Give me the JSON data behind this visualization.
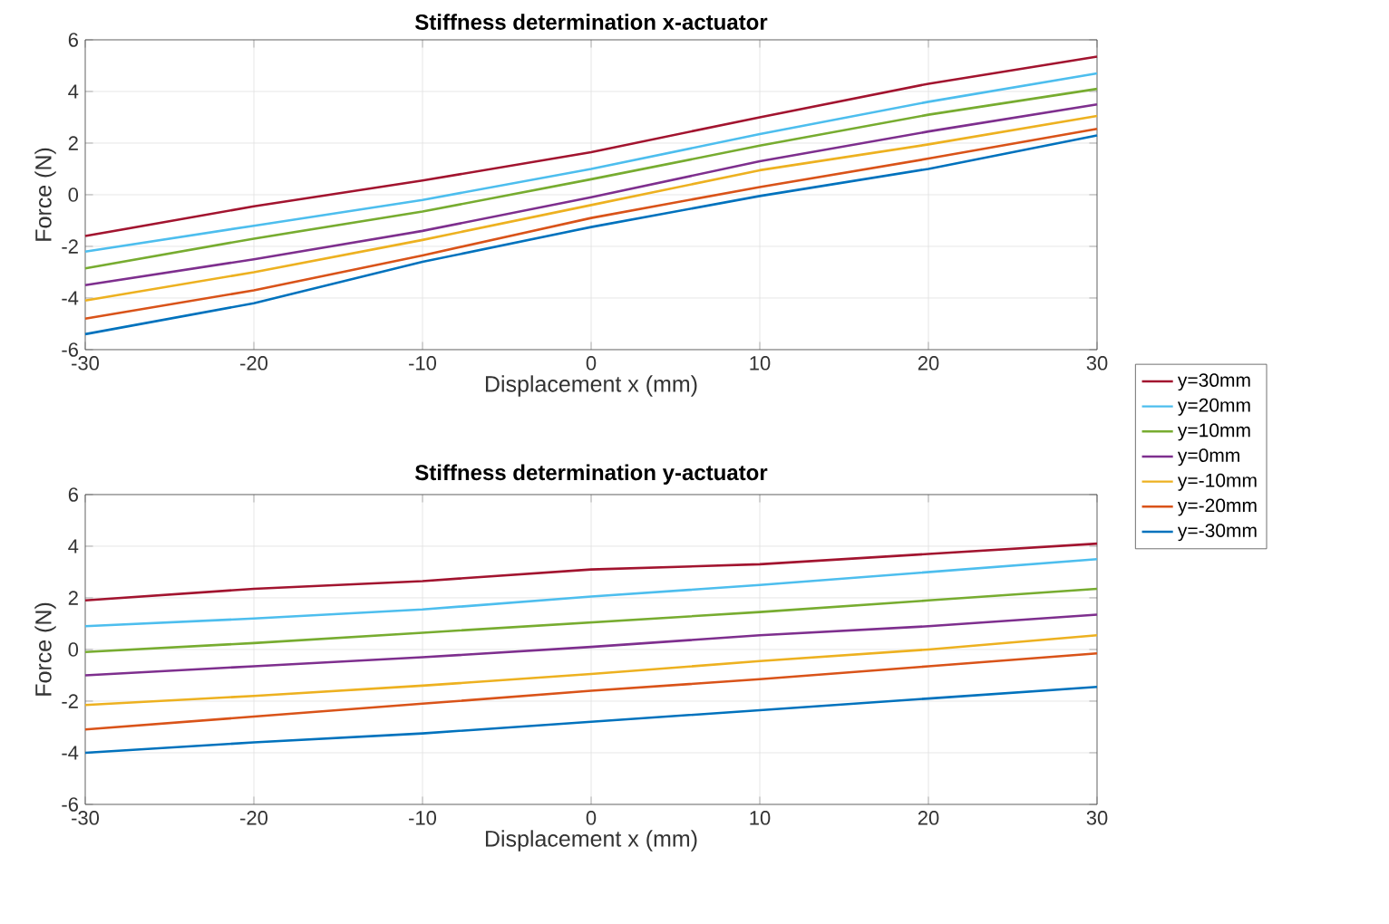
{
  "chart_data": [
    {
      "type": "line",
      "title": "Stiffness determination x-actuator",
      "xlabel": "Displacement x (mm)",
      "ylabel": "Force (N)",
      "x": [
        -30,
        -20,
        -10,
        0,
        10,
        20,
        30
      ],
      "xlim": [
        -30,
        30
      ],
      "xticks": [
        -30,
        -20,
        -10,
        0,
        10,
        20,
        30
      ],
      "ylim": [
        -6,
        6
      ],
      "yticks": [
        -6,
        -4,
        -2,
        0,
        2,
        4,
        6
      ],
      "grid": true,
      "legend": "right",
      "marker": "none",
      "line_style": "solid",
      "series": [
        {
          "name": "y=30mm",
          "color": "#a2142f",
          "values": [
            -1.6,
            -0.45,
            0.55,
            1.65,
            3.0,
            4.3,
            5.35
          ]
        },
        {
          "name": "y=20mm",
          "color": "#4dbeee",
          "values": [
            -2.2,
            -1.2,
            -0.2,
            1.0,
            2.35,
            3.6,
            4.7
          ]
        },
        {
          "name": "y=10mm",
          "color": "#77ac30",
          "values": [
            -2.85,
            -1.7,
            -0.65,
            0.6,
            1.9,
            3.1,
            4.1
          ]
        },
        {
          "name": "y=0mm",
          "color": "#7e2f8e",
          "values": [
            -3.5,
            -2.5,
            -1.4,
            -0.1,
            1.3,
            2.45,
            3.5
          ]
        },
        {
          "name": "y=-10mm",
          "color": "#edb120",
          "values": [
            -4.1,
            -3.0,
            -1.75,
            -0.4,
            0.95,
            1.95,
            3.05
          ]
        },
        {
          "name": "y=-20mm",
          "color": "#d95319",
          "values": [
            -4.8,
            -3.7,
            -2.35,
            -0.9,
            0.3,
            1.4,
            2.55
          ]
        },
        {
          "name": "y=-30mm",
          "color": "#0072bd",
          "values": [
            -5.4,
            -4.2,
            -2.6,
            -1.25,
            -0.05,
            1.0,
            2.3
          ]
        }
      ]
    },
    {
      "type": "line",
      "title": "Stiffness determination y-actuator",
      "xlabel": "Displacement x (mm)",
      "ylabel": "Force (N)",
      "x": [
        -30,
        -20,
        -10,
        0,
        10,
        20,
        30
      ],
      "xlim": [
        -30,
        30
      ],
      "xticks": [
        -30,
        -20,
        -10,
        0,
        10,
        20,
        30
      ],
      "ylim": [
        -6,
        6
      ],
      "yticks": [
        -6,
        -4,
        -2,
        0,
        2,
        4,
        6
      ],
      "grid": true,
      "marker": "none",
      "line_style": "solid",
      "series": [
        {
          "color": "#a2142f",
          "values": [
            1.9,
            2.35,
            2.65,
            3.1,
            3.3,
            3.7,
            4.1
          ]
        },
        {
          "color": "#4dbeee",
          "values": [
            0.9,
            1.2,
            1.55,
            2.05,
            2.5,
            3.0,
            3.5
          ]
        },
        {
          "color": "#77ac30",
          "values": [
            -0.1,
            0.25,
            0.65,
            1.05,
            1.45,
            1.9,
            2.35
          ]
        },
        {
          "color": "#7e2f8e",
          "values": [
            -1.0,
            -0.65,
            -0.3,
            0.1,
            0.55,
            0.9,
            1.35
          ]
        },
        {
          "color": "#edb120",
          "values": [
            -2.15,
            -1.8,
            -1.4,
            -0.95,
            -0.45,
            0.0,
            0.55
          ]
        },
        {
          "color": "#d95319",
          "values": [
            -3.1,
            -2.6,
            -2.1,
            -1.6,
            -1.15,
            -0.65,
            -0.15
          ]
        },
        {
          "color": "#0072bd",
          "values": [
            -4.0,
            -3.6,
            -3.25,
            -2.8,
            -2.35,
            -1.9,
            -1.45
          ]
        }
      ]
    }
  ]
}
